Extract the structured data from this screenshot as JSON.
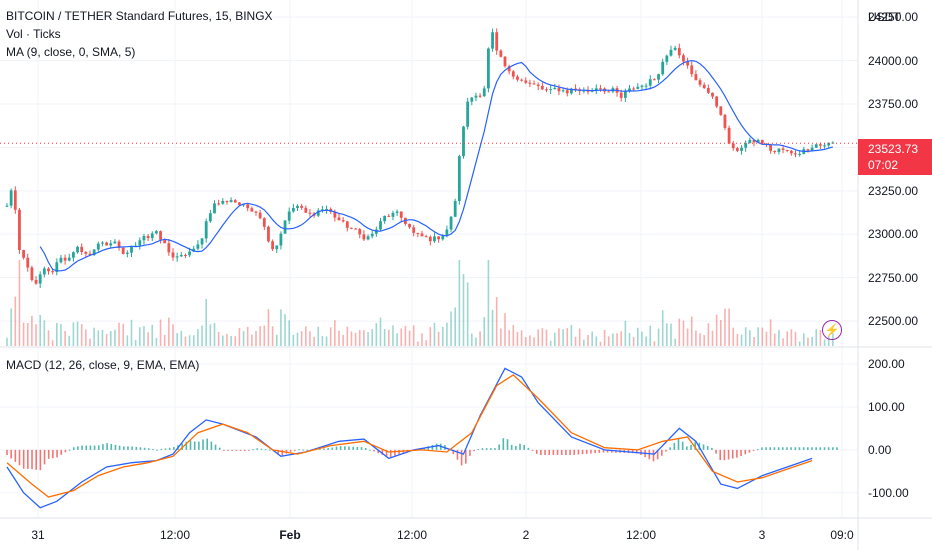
{
  "legend": {
    "title": "BITCOIN / TETHER Standard Futures, 15, BINGX",
    "volume": "Vol · Ticks",
    "ma": "MA (9, close, 0, SMA, 5)",
    "macd": "MACD (12, 26, close, 9, EMA, EMA)"
  },
  "price_axis": {
    "currency": "USDT",
    "ticks": [
      "24250.00",
      "24000.00",
      "23750.00",
      "23500.00",
      "23250.00",
      "23000.00",
      "22750.00",
      "22500.00"
    ],
    "current_price": "23523.73",
    "countdown": "07:02"
  },
  "macd_axis": {
    "ticks": [
      "200.00",
      "100.00",
      "0.00",
      "-100.00"
    ]
  },
  "time_axis": {
    "labels": [
      {
        "text": "31",
        "bold": false
      },
      {
        "text": "12:00",
        "bold": false
      },
      {
        "text": "Feb",
        "bold": true
      },
      {
        "text": "12:00",
        "bold": false
      },
      {
        "text": "2",
        "bold": false
      },
      {
        "text": "12:00",
        "bold": false
      },
      {
        "text": "3",
        "bold": false
      },
      {
        "text": "09:0",
        "bold": false
      }
    ]
  },
  "icons": {
    "alert": "lightning-icon"
  },
  "colors": {
    "up": "#26a69a",
    "down": "#ef5350",
    "ma": "#2962ff",
    "macd_line": "#2962ff",
    "signal_line": "#ff6d00",
    "hist_up": "#26a69a",
    "hist_down": "#ef5350",
    "price_line": "#f23645",
    "grid": "#f0f3fa"
  },
  "chart_data": {
    "type": "candlestick",
    "xlabels": [
      "31",
      "12:00",
      "Feb",
      "12:00",
      "2",
      "12:00",
      "3",
      "09:0"
    ],
    "price_range": [
      22420,
      24320
    ],
    "price_ticks": [
      24250,
      24000,
      23750,
      23500,
      23250,
      23000,
      22750,
      22500
    ],
    "price_path": [
      [
        23160,
        23300,
        22900,
        22850,
        22760,
        22700,
        22800,
        22780,
        22790,
        22880,
        22840,
        22900,
        22920,
        22870,
        22890,
        22920,
        22960,
        22940,
        22960,
        22910,
        22880,
        22920,
        22950,
        23000
      ],
      [
        22980,
        23020,
        22970,
        22930,
        22870,
        22860,
        22880,
        22900,
        22910,
        22980,
        23100,
        23170,
        23180,
        23190,
        23200,
        23180,
        23160,
        23150,
        23140,
        23100,
        23000,
        22920,
        22950,
        23080
      ],
      [
        23130,
        23170,
        23140,
        23110,
        23120,
        23140,
        23150,
        23120,
        23090,
        23060,
        23040,
        23020,
        22990,
        22980,
        23000,
        23050,
        23100,
        23110,
        23120,
        23090,
        23050,
        23000,
        22990,
        22980
      ],
      [
        22970,
        22980,
        23000,
        23050,
        23200,
        23550,
        23750,
        23800,
        23800,
        23850,
        24200,
        24050,
        23990,
        23930,
        23910,
        23900,
        23870,
        23860,
        23850,
        23830,
        23820,
        23840,
        23830,
        23820
      ],
      [
        23840,
        23830,
        23820,
        23830,
        23850,
        23840,
        23820,
        23830,
        23780,
        23820,
        23840,
        23850,
        23860,
        23880,
        23900,
        23980,
        24040,
        24100,
        24040,
        23990,
        23920,
        23870,
        23860,
        23810
      ],
      [
        23760,
        23700,
        23560,
        23480,
        23490,
        23520,
        23530,
        23540,
        23530,
        23500,
        23470,
        23490,
        23480,
        23460,
        23470,
        23480,
        23500,
        23520,
        23510,
        23520,
        23524
      ]
    ],
    "macd_range": [
      -145,
      205
    ],
    "macd_ticks": [
      200,
      100,
      0,
      -100
    ],
    "macd_line": [
      [
        0,
        -40
      ],
      [
        0.02,
        -100
      ],
      [
        0.04,
        -135
      ],
      [
        0.06,
        -120
      ],
      [
        0.09,
        -75
      ],
      [
        0.12,
        -40
      ],
      [
        0.15,
        -30
      ],
      [
        0.18,
        -25
      ],
      [
        0.2,
        -10
      ],
      [
        0.22,
        40
      ],
      [
        0.24,
        70
      ],
      [
        0.26,
        60
      ],
      [
        0.3,
        30
      ],
      [
        0.33,
        -15
      ],
      [
        0.36,
        -5
      ],
      [
        0.4,
        20
      ],
      [
        0.43,
        25
      ],
      [
        0.46,
        -20
      ],
      [
        0.49,
        0
      ],
      [
        0.52,
        10
      ],
      [
        0.55,
        -10
      ],
      [
        0.57,
        80
      ],
      [
        0.6,
        190
      ],
      [
        0.62,
        170
      ],
      [
        0.64,
        110
      ],
      [
        0.68,
        30
      ],
      [
        0.72,
        0
      ],
      [
        0.75,
        -5
      ],
      [
        0.78,
        -10
      ],
      [
        0.81,
        50
      ],
      [
        0.83,
        20
      ],
      [
        0.86,
        -80
      ],
      [
        0.88,
        -90
      ],
      [
        0.91,
        -60
      ],
      [
        0.94,
        -40
      ],
      [
        0.97,
        -20
      ]
    ],
    "signal_line": [
      [
        0,
        -30
      ],
      [
        0.03,
        -80
      ],
      [
        0.05,
        -110
      ],
      [
        0.08,
        -95
      ],
      [
        0.11,
        -60
      ],
      [
        0.14,
        -40
      ],
      [
        0.17,
        -30
      ],
      [
        0.2,
        -15
      ],
      [
        0.23,
        40
      ],
      [
        0.26,
        60
      ],
      [
        0.29,
        40
      ],
      [
        0.32,
        0
      ],
      [
        0.35,
        -10
      ],
      [
        0.39,
        10
      ],
      [
        0.43,
        20
      ],
      [
        0.46,
        -5
      ],
      [
        0.5,
        0
      ],
      [
        0.53,
        -5
      ],
      [
        0.56,
        40
      ],
      [
        0.59,
        150
      ],
      [
        0.61,
        175
      ],
      [
        0.64,
        120
      ],
      [
        0.68,
        40
      ],
      [
        0.72,
        5
      ],
      [
        0.76,
        0
      ],
      [
        0.79,
        20
      ],
      [
        0.82,
        30
      ],
      [
        0.85,
        -50
      ],
      [
        0.88,
        -75
      ],
      [
        0.91,
        -65
      ],
      [
        0.94,
        -45
      ],
      [
        0.97,
        -25
      ]
    ]
  }
}
